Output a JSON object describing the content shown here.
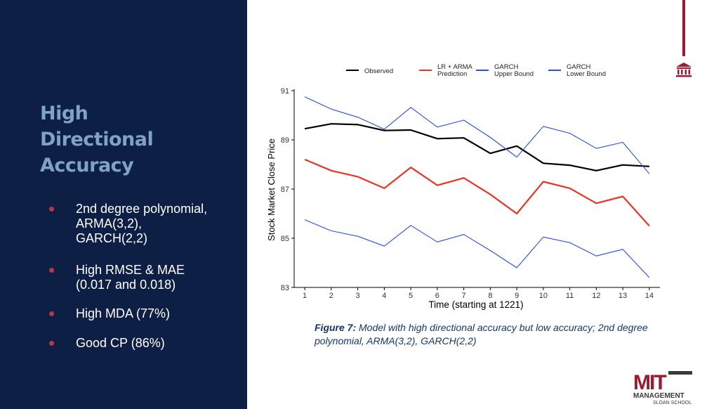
{
  "slide": {
    "heading_lines": [
      "High",
      "Directional",
      "Accuracy"
    ],
    "bullets": [
      "2nd degree polynomial,\nARMA(3,2),\nGARCH(2,2)",
      "High RMSE & MAE\n(0.017 and 0.018)",
      "High MDA (77%)",
      "Good CP (86%)"
    ],
    "caption_label": "Figure 7:",
    "caption_text": " Model with high directional accuracy but low accuracy; 2nd degree polynomial, ARMA(3,2), GARCH(2,2)",
    "logo": {
      "mark": "MIT",
      "line1": "MANAGEMENT",
      "line2": "SLOAN SCHOOL"
    }
  },
  "colors": {
    "left_panel": "#0d1f45",
    "heading": "#7fa3c4",
    "bullet_dot": "#b03a48",
    "accent_red": "#9b1b30",
    "caption": "#13386b"
  },
  "chart_data": {
    "type": "line",
    "xlabel": "Time (starting at 1221)",
    "ylabel": "Stock Market Close Price",
    "x": [
      1,
      2,
      3,
      4,
      5,
      6,
      7,
      8,
      9,
      10,
      11,
      12,
      13,
      14
    ],
    "ylim": [
      83,
      91
    ],
    "yticks": [
      83,
      85,
      87,
      89,
      91
    ],
    "grid": false,
    "legend_position": "top",
    "series": [
      {
        "name": "Observed",
        "color": "#000000",
        "width": 2.2,
        "values": [
          89.45,
          89.65,
          89.62,
          89.38,
          89.4,
          89.05,
          89.08,
          88.45,
          88.75,
          88.05,
          87.97,
          87.75,
          87.98,
          87.92
        ]
      },
      {
        "name": "LR + ARMA\nPrediction",
        "color": "#ee3322",
        "width": 2.2,
        "values": [
          88.2,
          87.75,
          87.5,
          87.03,
          87.88,
          87.15,
          87.45,
          86.78,
          86.0,
          87.3,
          87.03,
          86.42,
          86.7,
          85.5
        ]
      },
      {
        "name": "GARCH\nUpper Bound",
        "color": "#2a4ee8",
        "width": 1.1,
        "values": [
          90.75,
          90.25,
          89.92,
          89.43,
          90.32,
          89.52,
          89.8,
          89.1,
          88.3,
          89.55,
          89.27,
          88.65,
          88.9,
          87.62
        ]
      },
      {
        "name": "GARCH\nLower Bound",
        "color": "#2a4ee8",
        "width": 1.1,
        "values": [
          85.75,
          85.3,
          85.08,
          84.68,
          85.52,
          84.85,
          85.15,
          84.5,
          83.8,
          85.05,
          84.82,
          84.28,
          84.55,
          83.4
        ]
      }
    ]
  }
}
